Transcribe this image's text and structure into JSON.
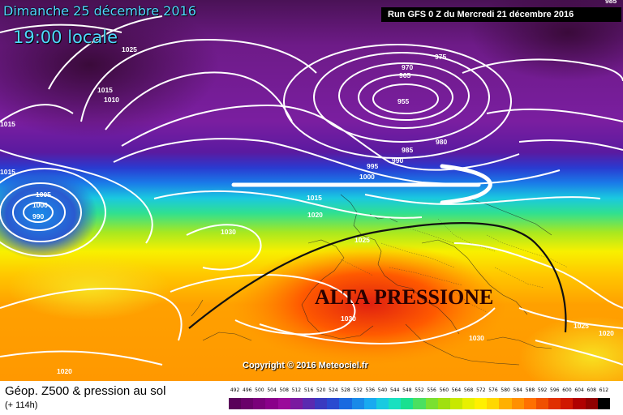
{
  "header": {
    "date": "Dimanche 25 décembre 2016",
    "time": "19:00 locale",
    "run": "Run GFS 0 Z du Mercredi 21 décembre 2016"
  },
  "map": {
    "annotation": "ALTA PRESSIONE",
    "copyright": "Copyright © 2016 Meteociel.fr",
    "isobar_labels": [
      "1025",
      "1015",
      "1010",
      "1015",
      "1015",
      "1005",
      "1000",
      "990",
      "970",
      "965",
      "955",
      "975",
      "985",
      "980",
      "995",
      "990",
      "1000",
      "1015",
      "1020",
      "1030",
      "1025",
      "1030",
      "1030",
      "1025",
      "1020",
      "1020",
      "985"
    ]
  },
  "footer": {
    "title": "Géop. Z500 & pression au sol",
    "subtitle": "(+ 114h)"
  },
  "scale": {
    "labels": [
      "492",
      "496",
      "500",
      "504",
      "508",
      "512",
      "516",
      "520",
      "524",
      "528",
      "532",
      "536",
      "540",
      "544",
      "548",
      "552",
      "556",
      "560",
      "564",
      "568",
      "572",
      "576",
      "580",
      "584",
      "588",
      "592",
      "596",
      "600",
      "604",
      "608",
      "612"
    ],
    "colors": [
      "#5a005a",
      "#6a006a",
      "#7a007a",
      "#8a008a",
      "#9a0a9a",
      "#7a1aa0",
      "#5a2ab0",
      "#3a3ac0",
      "#2a4ad0",
      "#1a6ae0",
      "#1a8ae8",
      "#1aaaf0",
      "#1acae0",
      "#1ae0c0",
      "#1ae090",
      "#4ae060",
      "#7ae030",
      "#a0e010",
      "#c8e800",
      "#e8f000",
      "#fff000",
      "#ffd800",
      "#ffb000",
      "#ff9000",
      "#ff7000",
      "#f05000",
      "#e03000",
      "#d01800",
      "#b00000",
      "#900000",
      "#000000"
    ]
  },
  "colors": {
    "label_cyan": "#4fd8ff",
    "isobar": "#ffffff",
    "ridge": "#111111"
  }
}
